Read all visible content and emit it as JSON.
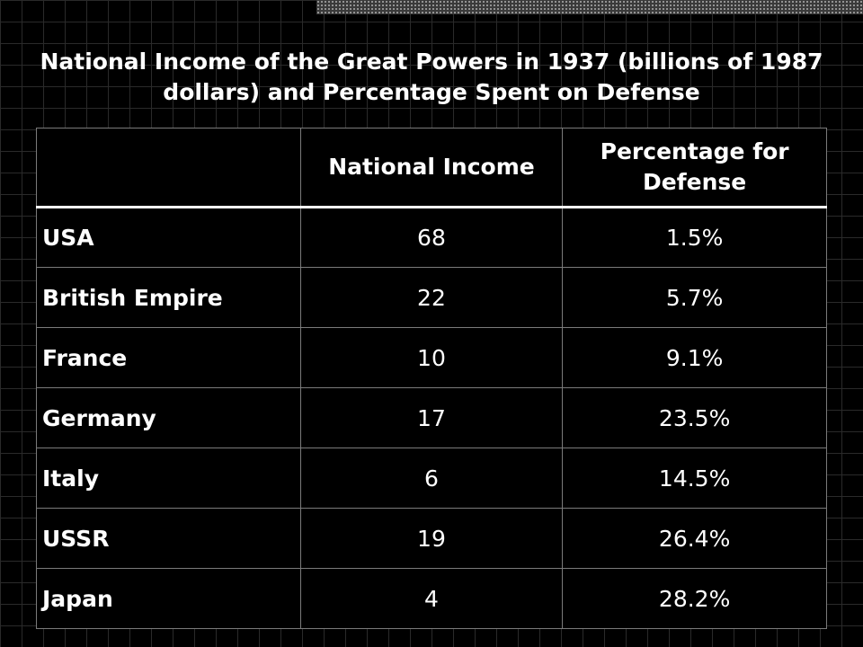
{
  "slide": {
    "title": "National Income of the Great Powers in 1937 (billions of 1987 dollars) and Percentage Spent on Defense"
  },
  "colors": {
    "background": "#000000",
    "text": "#ffffff",
    "grid": "#2a2a2a",
    "cell_border": "#7a7a7a"
  },
  "chart_data": {
    "type": "table",
    "title": "National Income of the Great Powers in 1937 (billions of 1987 dollars) and Percentage Spent on Defense",
    "columns": [
      "",
      "National Income",
      "Percentage for Defense"
    ],
    "rows": [
      {
        "country": "USA",
        "national_income": "68",
        "defense_pct": "1.5%"
      },
      {
        "country": "British Empire",
        "national_income": "22",
        "defense_pct": "5.7%"
      },
      {
        "country": "France",
        "national_income": "10",
        "defense_pct": "9.1%"
      },
      {
        "country": "Germany",
        "national_income": "17",
        "defense_pct": "23.5%"
      },
      {
        "country": "Italy",
        "national_income": "6",
        "defense_pct": "14.5%"
      },
      {
        "country": "USSR",
        "national_income": "19",
        "defense_pct": "26.4%"
      },
      {
        "country": "Japan",
        "national_income": "4",
        "defense_pct": "28.2%"
      }
    ]
  }
}
